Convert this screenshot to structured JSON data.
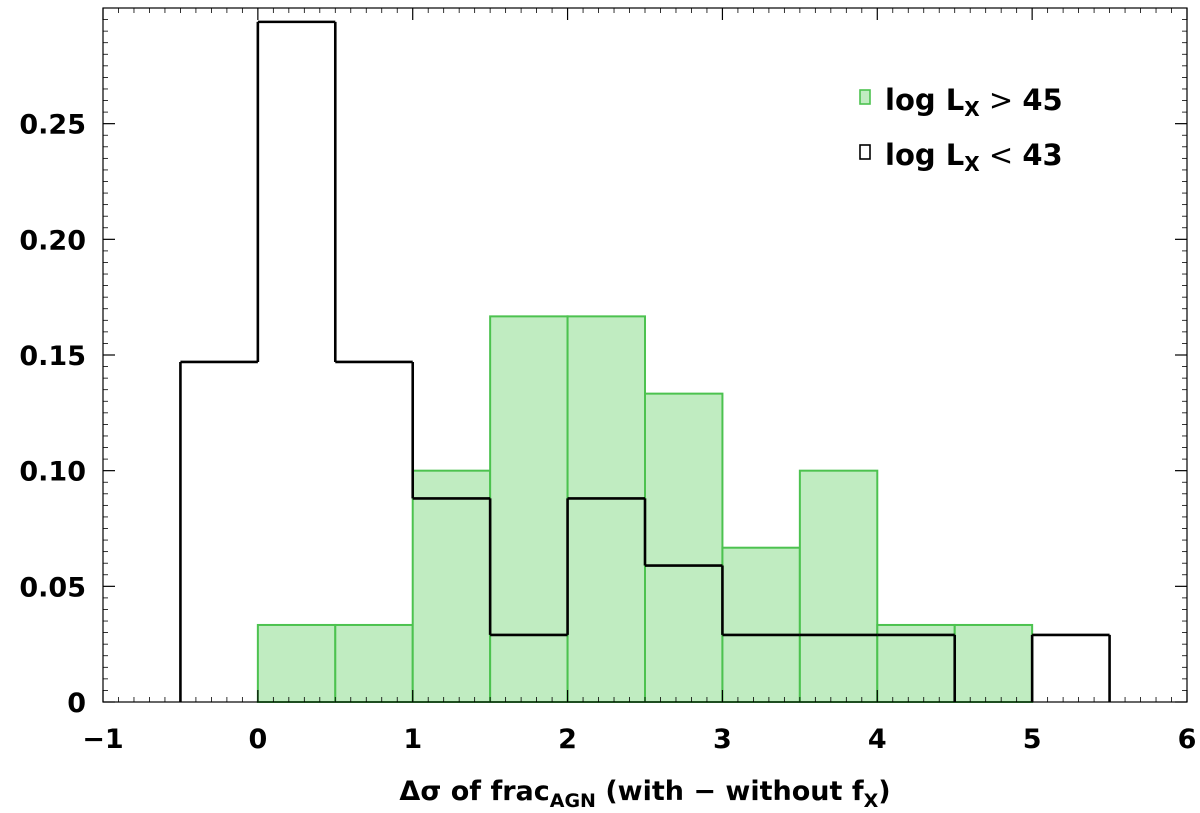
{
  "chart_data": {
    "type": "bar",
    "bin_edges": [
      -1,
      -0.5,
      0,
      0.5,
      1,
      1.5,
      2,
      2.5,
      3,
      3.5,
      4,
      4.5,
      5,
      5.5,
      6
    ],
    "series": [
      {
        "legend_prefix": "log L",
        "legend_sub": "X",
        "legend_op": ">",
        "legend_value": "45",
        "style": "filled",
        "fill_color": "#c0ecc1",
        "edge_color": "#4cc24f",
        "values": [
          0,
          0,
          0.0333,
          0.0333,
          0.1,
          0.1667,
          0.1667,
          0.1333,
          0.0667,
          0.1,
          0.0333,
          0.0333,
          0,
          0
        ]
      },
      {
        "legend_prefix": "log L",
        "legend_sub": "X",
        "legend_op": "<",
        "legend_value": "43",
        "style": "step",
        "fill_color": "none",
        "edge_color": "#000000",
        "values": [
          0,
          0.147,
          0.294,
          0.147,
          0.088,
          0.029,
          0.088,
          0.059,
          0.029,
          0.029,
          0.029,
          0,
          0.029,
          0
        ]
      }
    ],
    "xlabel": {
      "part1": "Δσ of frac",
      "part1_sub": "AGN",
      "part2": " (with − without f",
      "part2_sub": "X",
      "part3": ")"
    },
    "xlim": [
      -1,
      6
    ],
    "ylim": [
      0,
      0.3
    ],
    "x_ticks": [
      -1,
      0,
      1,
      2,
      3,
      4,
      5,
      6
    ],
    "x_tick_labels": [
      "−1",
      "0",
      "1",
      "2",
      "3",
      "4",
      "5",
      "6"
    ],
    "y_ticks": [
      0,
      0.05,
      0.1,
      0.15,
      0.2,
      0.25
    ],
    "y_tick_labels": [
      "0",
      "0.05",
      "0.10",
      "0.15",
      "0.20",
      "0.25"
    ],
    "legend_position": "top-right",
    "grid": false
  }
}
